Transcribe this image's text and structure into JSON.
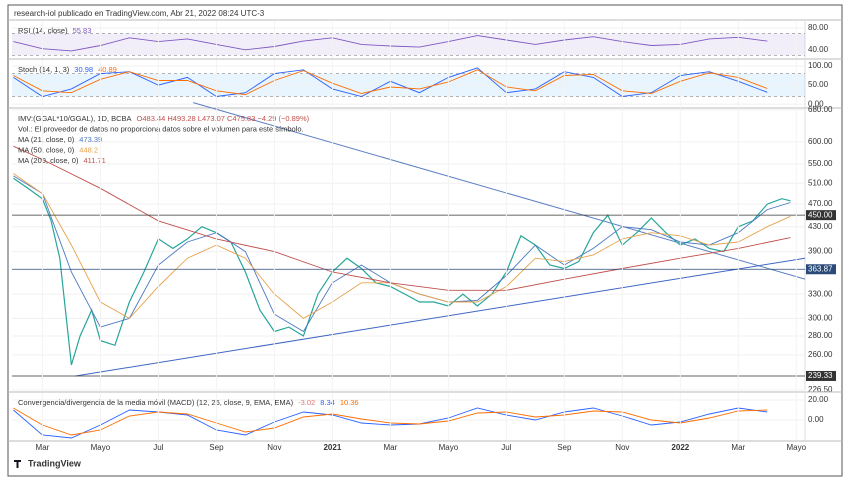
{
  "header": "research-iol publicado en TradingView.com, Abr 21, 2022 08:24 UTC-3",
  "footer": "TradingView",
  "chart_data": [
    {
      "type": "line",
      "title": "RSI (14, close)",
      "xlim": [
        -1.05,
        26.3
      ],
      "ylim": [
        25,
        91
      ],
      "yticks": [
        {
          "value": 80,
          "label": "80.00"
        },
        {
          "value": 40,
          "label": "40.00"
        }
      ],
      "band": [
        30,
        70
      ],
      "band_color": "#7e57c2",
      "series": [
        {
          "color": "#7e57c2",
          "last_value": 55.83,
          "x": [
            -1,
            0,
            1,
            2,
            3,
            4,
            5,
            6,
            7,
            8,
            9,
            10,
            11,
            12,
            13,
            14,
            15,
            16,
            17,
            18,
            19,
            20,
            21,
            22,
            23,
            24,
            25
          ],
          "values": [
            55,
            42,
            38,
            48,
            62,
            55,
            60,
            50,
            40,
            46,
            56,
            62,
            50,
            47,
            45,
            55,
            66,
            58,
            50,
            58,
            64,
            55,
            48,
            50,
            60,
            63,
            56
          ]
        }
      ]
    },
    {
      "type": "line",
      "title": "Stoch (14, 1, 3)",
      "xlim": [
        -1.05,
        26.3
      ],
      "ylim": [
        -10,
        113
      ],
      "yticks": [
        {
          "value": 100,
          "label": "100.00"
        },
        {
          "value": 50,
          "label": "50.00"
        },
        {
          "value": 0,
          "label": "0.00"
        }
      ],
      "band": [
        20,
        80
      ],
      "band_color": "#2196f3",
      "series": [
        {
          "color": "#2962ff",
          "last_value": 30.98,
          "x": [
            -1,
            0,
            1,
            2,
            3,
            4,
            5,
            6,
            7,
            8,
            9,
            10,
            11,
            12,
            13,
            14,
            15,
            16,
            17,
            18,
            19,
            20,
            21,
            22,
            23,
            24,
            25
          ],
          "values": [
            70,
            20,
            40,
            80,
            85,
            50,
            70,
            20,
            30,
            80,
            90,
            40,
            20,
            60,
            30,
            70,
            95,
            30,
            40,
            85,
            70,
            20,
            30,
            75,
            85,
            60,
            31
          ]
        },
        {
          "color": "#ff6d00",
          "last_value": 40.89,
          "x": [
            -1,
            0,
            1,
            2,
            3,
            4,
            5,
            6,
            7,
            8,
            9,
            10,
            11,
            12,
            13,
            14,
            15,
            16,
            17,
            18,
            19,
            20,
            21,
            22,
            23,
            24,
            25
          ],
          "values": [
            75,
            35,
            30,
            65,
            85,
            62,
            62,
            35,
            25,
            62,
            88,
            55,
            28,
            45,
            40,
            58,
            90,
            45,
            35,
            75,
            78,
            35,
            28,
            60,
            82,
            70,
            41
          ]
        }
      ]
    },
    {
      "type": "line",
      "log": true,
      "title": "IMV:(GGAL*10/GGAL), 1D, BCBA",
      "ohlc": "O483.44 H493.28 L473.07 C475.83 −4.29 (−0.89%)",
      "note": "Vol.: El proveedor de datos no proporciona datos sobre el volumen para este símbolo.",
      "xlim": [
        -1.05,
        26.3
      ],
      "ylim": [
        226.5,
        680
      ],
      "yticks": [
        {
          "value": 680,
          "label": "680.00"
        },
        {
          "value": 600,
          "label": "600.00"
        },
        {
          "value": 550,
          "label": "550.00"
        },
        {
          "value": 510,
          "label": "510.00"
        },
        {
          "value": 470,
          "label": "470.00"
        },
        {
          "value": 430,
          "label": "430.00"
        },
        {
          "value": 390,
          "label": "390.00"
        },
        {
          "value": 330,
          "label": "330.00"
        },
        {
          "value": 300,
          "label": "300.00"
        },
        {
          "value": 280,
          "label": "280.00"
        },
        {
          "value": 260,
          "label": "260.00"
        },
        {
          "value": 226.5,
          "label": "226.50"
        }
      ],
      "levels": [
        {
          "value": 450,
          "label": "450.00",
          "color": "#333"
        },
        {
          "value": 363.87,
          "label": "363.87",
          "color": "#2a4a7a"
        },
        {
          "value": 239.33,
          "label": "239.33",
          "color": "#333"
        }
      ],
      "trendlines": [
        {
          "color": "#5b7fc4",
          "x": [
            5.2,
            26.3
          ],
          "values": [
            700,
            350
          ]
        },
        {
          "color": "#3f66c4",
          "x": [
            1.15,
            26.3
          ],
          "values": [
            239.33,
            380
          ]
        }
      ],
      "series": [
        {
          "color": "#26a69a",
          "x": [
            -1,
            -0.5,
            0,
            0.3,
            0.6,
            1,
            1.3,
            1.7,
            2,
            2.5,
            3,
            3.5,
            4,
            4.5,
            5,
            5.5,
            6,
            6.5,
            7,
            7.5,
            8,
            8.5,
            9,
            9.5,
            10,
            10.5,
            11,
            11.5,
            12,
            12.5,
            13,
            13.5,
            14,
            14.5,
            15,
            15.5,
            16,
            16.5,
            17,
            17.5,
            18,
            18.5,
            19,
            19.5,
            20,
            20.5,
            21,
            21.5,
            22,
            22.5,
            23,
            23.5,
            24,
            24.5,
            25,
            25.5,
            25.8
          ],
          "values": [
            520,
            500,
            480,
            440,
            380,
            250,
            280,
            310,
            275,
            270,
            320,
            360,
            410,
            395,
            410,
            430,
            420,
            405,
            360,
            310,
            285,
            290,
            280,
            330,
            360,
            380,
            365,
            345,
            340,
            330,
            320,
            320,
            315,
            330,
            315,
            330,
            360,
            415,
            400,
            370,
            365,
            375,
            420,
            450,
            400,
            420,
            445,
            420,
            400,
            410,
            395,
            390,
            430,
            440,
            470,
            480,
            476
          ]
        },
        {
          "name": "MA (21, close, 0)",
          "color": "#4a78c2",
          "last_value": 473.39,
          "x": [
            -1,
            0,
            1,
            2,
            3,
            4,
            5,
            6,
            7,
            8,
            9,
            10,
            11,
            12,
            13,
            14,
            15,
            16,
            17,
            18,
            19,
            20,
            21,
            22,
            23,
            24,
            25,
            25.8
          ],
          "values": [
            525,
            490,
            360,
            290,
            300,
            370,
            405,
            420,
            390,
            305,
            285,
            345,
            370,
            345,
            330,
            320,
            322,
            355,
            400,
            370,
            395,
            430,
            425,
            405,
            400,
            420,
            460,
            473
          ]
        },
        {
          "name": "MA (50, close, 0)",
          "color": "#e8a24a",
          "last_value": 448.2,
          "x": [
            -1,
            0,
            1,
            2,
            3,
            4,
            5,
            6,
            7,
            8,
            9,
            10,
            11,
            12,
            13,
            14,
            15,
            16,
            17,
            18,
            19,
            20,
            21,
            22,
            23,
            24,
            25,
            25.8
          ],
          "values": [
            530,
            490,
            400,
            320,
            300,
            340,
            380,
            400,
            380,
            330,
            300,
            320,
            345,
            345,
            330,
            320,
            320,
            340,
            380,
            375,
            385,
            410,
            420,
            415,
            400,
            405,
            430,
            448
          ]
        },
        {
          "name": "MA (200, close, 0)",
          "color": "#c0504d",
          "last_value": 411.71,
          "x": [
            -1,
            0,
            2,
            4,
            6,
            8,
            10,
            12,
            14,
            16,
            18,
            20,
            22,
            24,
            25.8
          ],
          "values": [
            590,
            560,
            500,
            440,
            410,
            390,
            360,
            345,
            335,
            335,
            350,
            365,
            380,
            395,
            412
          ]
        }
      ]
    },
    {
      "type": "line",
      "title": "Convergencia/divergencia de la media móvil (MACD) (12, 26, close, 9, EMA, EMA)",
      "histogram_last": -3.02,
      "xlim": [
        -1.05,
        26.3
      ],
      "ylim": [
        -20,
        26
      ],
      "yticks": [
        {
          "value": 20,
          "label": "20.00"
        },
        {
          "value": 0,
          "label": "0.00"
        }
      ],
      "xticks": [
        {
          "value": 0,
          "label": "Mar"
        },
        {
          "value": 2,
          "label": "Mayo"
        },
        {
          "value": 4,
          "label": "Jul"
        },
        {
          "value": 6,
          "label": "Sep"
        },
        {
          "value": 8,
          "label": "Nov"
        },
        {
          "value": 10,
          "label": "2021"
        },
        {
          "value": 12,
          "label": "Mar"
        },
        {
          "value": 14,
          "label": "Mayo"
        },
        {
          "value": 16,
          "label": "Jul"
        },
        {
          "value": 18,
          "label": "Sep"
        },
        {
          "value": 20,
          "label": "Nov"
        },
        {
          "value": 22,
          "label": "2022"
        },
        {
          "value": 24,
          "label": "Mar"
        },
        {
          "value": 26,
          "label": "Mayo"
        }
      ],
      "series": [
        {
          "color": "#2962ff",
          "last_value": 8.34,
          "x": [
            -1,
            0,
            1,
            2,
            3,
            4,
            5,
            6,
            7,
            8,
            9,
            10,
            11,
            12,
            13,
            14,
            15,
            16,
            17,
            18,
            19,
            20,
            21,
            22,
            23,
            24,
            25
          ],
          "values": [
            10,
            -15,
            -18,
            -5,
            10,
            8,
            5,
            -10,
            -15,
            -2,
            8,
            5,
            -3,
            -5,
            -4,
            2,
            12,
            5,
            0,
            8,
            12,
            4,
            -5,
            -2,
            6,
            12,
            8
          ]
        },
        {
          "color": "#ff6d00",
          "last_value": 10.36,
          "x": [
            -1,
            0,
            1,
            2,
            3,
            4,
            5,
            6,
            7,
            8,
            9,
            10,
            11,
            12,
            13,
            14,
            15,
            16,
            17,
            18,
            19,
            20,
            21,
            22,
            23,
            24,
            25
          ],
          "values": [
            12,
            -5,
            -15,
            -10,
            4,
            8,
            6,
            -3,
            -12,
            -8,
            3,
            6,
            1,
            -3,
            -4,
            -1,
            7,
            8,
            3,
            5,
            9,
            8,
            0,
            -3,
            2,
            9,
            10
          ]
        }
      ]
    }
  ]
}
